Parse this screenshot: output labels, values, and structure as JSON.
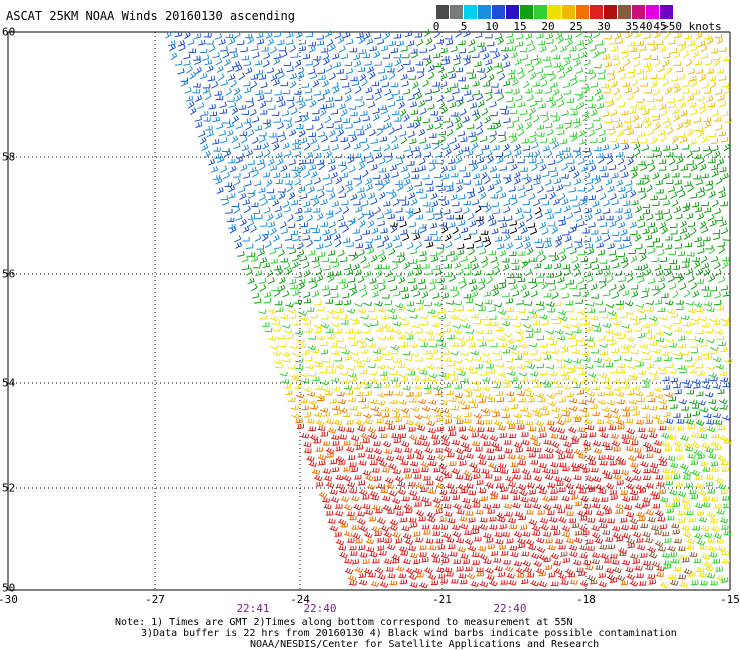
{
  "title": "ASCAT 25KM NOAA Winds 20160130 ascending",
  "legend": {
    "colors": [
      "#4a4a4a",
      "#7a7a7a",
      "#00d0f0",
      "#1a8fe0",
      "#1e4fd8",
      "#2a10c0",
      "#10a010",
      "#30d030",
      "#f0e000",
      "#f0b800",
      "#f07000",
      "#e02020",
      "#b01010",
      "#8b5a3a",
      "#c8107a",
      "#e000e0",
      "#7000c0"
    ],
    "labels": [
      "0",
      "5",
      "10",
      "15",
      "20",
      "25",
      "30",
      "35",
      "40",
      "45",
      ">50 knots"
    ],
    "label_index": [
      0,
      2,
      4,
      6,
      8,
      10,
      12,
      14,
      15,
      16,
      17
    ]
  },
  "axes": {
    "lon_labels": [
      "-30",
      "-27",
      "-24",
      "-21",
      "-18",
      "-15"
    ],
    "lat_labels": [
      "60",
      "58",
      "56",
      "54",
      "52",
      "50"
    ]
  },
  "times": [
    "22:41",
    "22:40",
    "22:40"
  ],
  "notes": [
    "Note: 1) Times are GMT 2)Times along bottom correspond to measurement at 55N",
    "3)Data buffer is 22 hrs from 20160130 4) Black wind barbs indicate possible contamination",
    "NOAA/NESDIS/Center for Satellite Applications and Research"
  ],
  "colors": {
    "grid": "#000000",
    "time_text": "#7a1f8a"
  }
}
